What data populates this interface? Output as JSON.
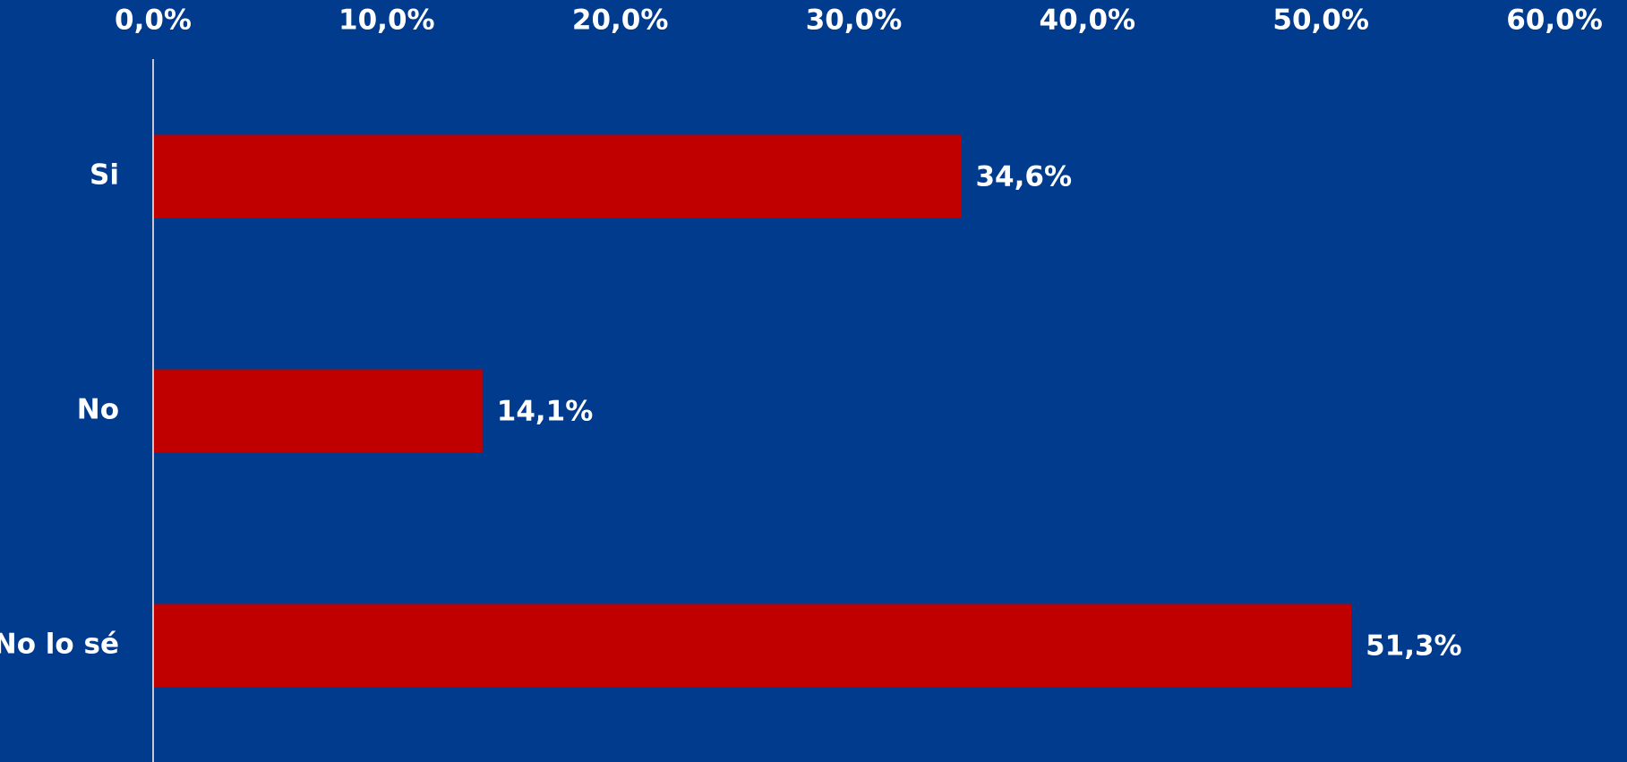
{
  "chart_data": {
    "type": "bar",
    "orientation": "horizontal",
    "categories": [
      "Si",
      "No",
      "No lo sé"
    ],
    "values": [
      34.6,
      14.1,
      51.3
    ],
    "value_labels": [
      "34,6%",
      "14,1%",
      "51,3%"
    ],
    "x_ticks": [
      0,
      10,
      20,
      30,
      40,
      50,
      60
    ],
    "x_tick_labels": [
      "0,0%",
      "10,0%",
      "20,0%",
      "30,0%",
      "40,0%",
      "50,0%",
      "60,0%"
    ],
    "xlim": [
      0,
      60
    ],
    "x_axis_position": "top",
    "grid": false,
    "legend": false,
    "title": "",
    "xlabel": "",
    "ylabel": ""
  },
  "colors": {
    "background": "#003b8e",
    "bar": "#c00000",
    "text": "#ffffff",
    "axis_line": "#c8c8d2"
  }
}
